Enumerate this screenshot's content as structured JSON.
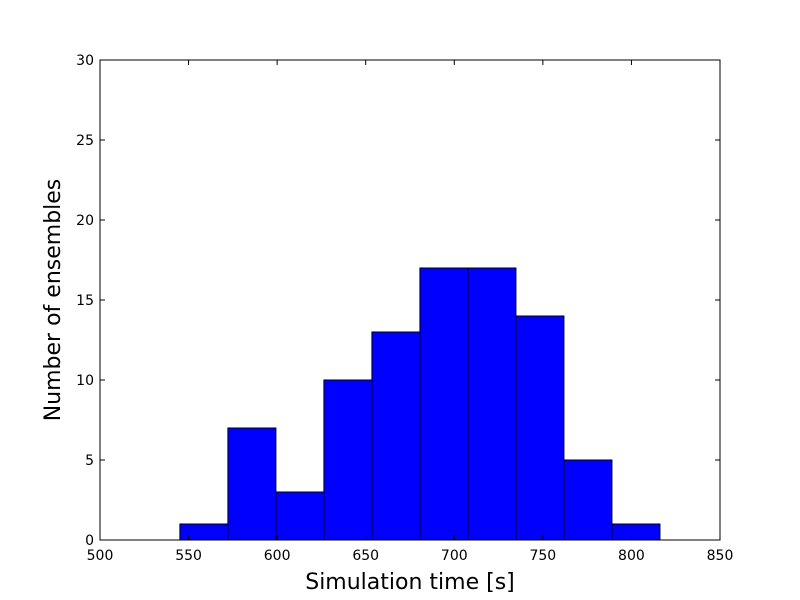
{
  "chart_data": {
    "type": "bar",
    "subtype": "histogram",
    "xlabel": "Simulation time [s]",
    "ylabel": "Number of ensembles",
    "xlim": [
      500,
      850
    ],
    "ylim": [
      0,
      30
    ],
    "xticks": [
      500,
      550,
      600,
      650,
      700,
      750,
      800,
      850
    ],
    "yticks": [
      0,
      5,
      10,
      15,
      20,
      25,
      30
    ],
    "bins": [
      {
        "start": 545.1,
        "end": 572.2,
        "count": 1
      },
      {
        "start": 572.2,
        "end": 599.3,
        "count": 7
      },
      {
        "start": 599.3,
        "end": 626.4,
        "count": 3
      },
      {
        "start": 626.4,
        "end": 653.5,
        "count": 10
      },
      {
        "start": 653.5,
        "end": 680.6,
        "count": 13
      },
      {
        "start": 680.6,
        "end": 707.7,
        "count": 17
      },
      {
        "start": 707.7,
        "end": 734.8,
        "count": 17
      },
      {
        "start": 734.8,
        "end": 761.9,
        "count": 14
      },
      {
        "start": 761.9,
        "end": 789.0,
        "count": 5
      },
      {
        "start": 789.0,
        "end": 816.1,
        "count": 1
      }
    ],
    "bar_color": "#0000ff",
    "edge_color": "#000000",
    "grid": false,
    "legend": "none"
  }
}
